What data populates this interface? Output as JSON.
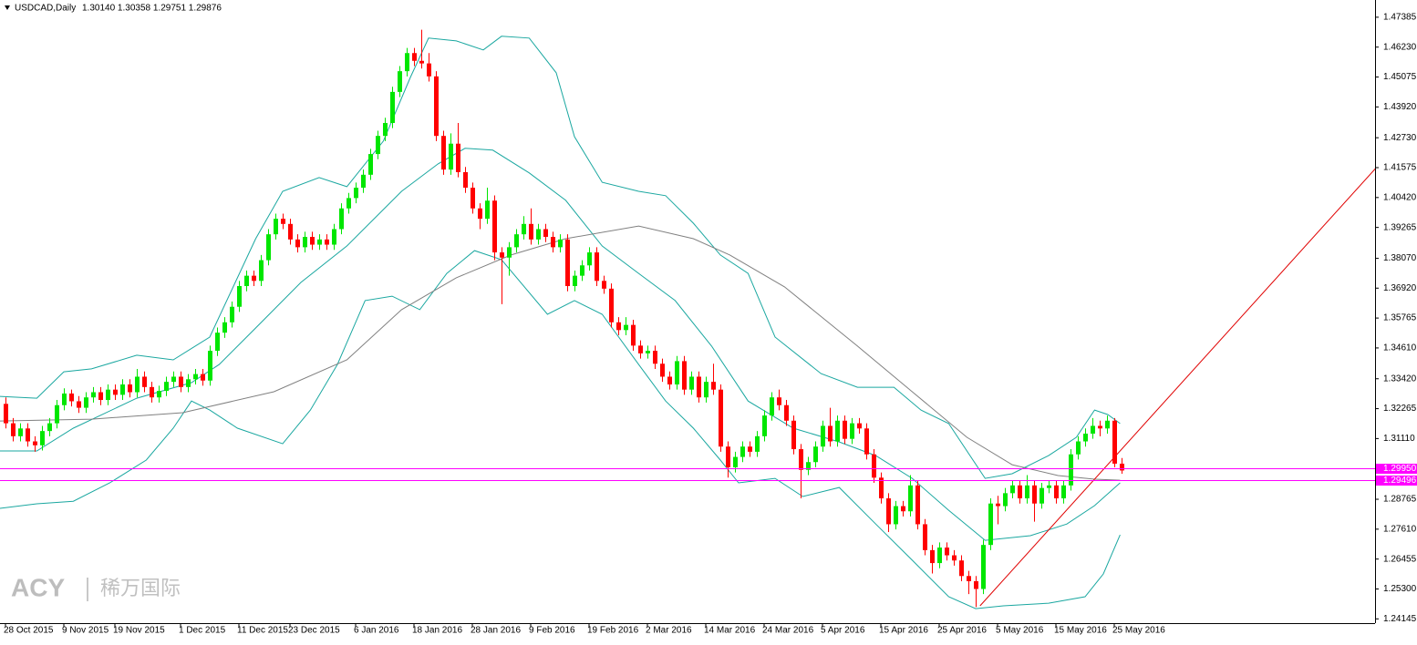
{
  "chart_data": {
    "type": "candlestick",
    "title": "USDCAD,Daily",
    "ohlc_text": "1.30140 1.30358 1.29751 1.29876",
    "watermark": {
      "brand": "ACY",
      "name": "稀万国际"
    },
    "up_color": "#00e600",
    "down_color": "#ff0000",
    "xlim": [
      -0.75,
      187.75
    ],
    "ylim": [
      1.2398,
      1.4805
    ],
    "yticks": [
      1.47385,
      {
        "value": 1.4623,
        "label": "1.46230"
      },
      1.45075,
      {
        "value": 1.4392,
        "label": "1.43920"
      },
      {
        "value": 1.4273,
        "label": "1.42730"
      },
      1.41575,
      {
        "value": 1.4042,
        "label": "1.40420"
      },
      1.39265,
      {
        "value": 1.3807,
        "label": "1.38070"
      },
      {
        "value": 1.3692,
        "label": "1.36920"
      },
      1.35765,
      {
        "value": 1.3461,
        "label": "1.34610"
      },
      {
        "value": 1.3342,
        "label": "1.33420"
      },
      1.32265,
      {
        "value": 1.3111,
        "label": "1.31110"
      },
      1.28765,
      {
        "value": 1.2761,
        "label": "1.27610"
      },
      1.26455,
      {
        "value": 1.253,
        "label": "1.25300"
      },
      1.24145
    ],
    "xticks": [
      {
        "value": 0,
        "label": "28 Oct 2015"
      },
      {
        "value": 8,
        "label": "9 Nov 2015"
      },
      {
        "value": 15,
        "label": "19 Nov 2015"
      },
      {
        "value": 24,
        "label": "1 Dec 2015"
      },
      {
        "value": 32,
        "label": "11 Dec 2015"
      },
      {
        "value": 39,
        "label": "23 Dec 2015"
      },
      {
        "value": 48,
        "label": "6 Jan 2016"
      },
      {
        "value": 56,
        "label": "18 Jan 2016"
      },
      {
        "value": 64,
        "label": "28 Jan 2016"
      },
      {
        "value": 72,
        "label": "9 Feb 2016"
      },
      {
        "value": 80,
        "label": "19 Feb 2016"
      },
      {
        "value": 88,
        "label": "2 Mar 2016"
      },
      {
        "value": 96,
        "label": "14 Mar 2016"
      },
      {
        "value": 104,
        "label": "24 Mar 2016"
      },
      {
        "value": 112,
        "label": "5 Apr 2016"
      },
      {
        "value": 120,
        "label": "15 Apr 2016"
      },
      {
        "value": 128,
        "label": "25 Apr 2016"
      },
      {
        "value": 136,
        "label": "5 May 2016"
      },
      {
        "value": 144,
        "label": "15 May 2016"
      },
      {
        "value": 152,
        "label": "25 May 2016"
      }
    ],
    "ohlc": [
      [
        1.3245,
        1.327,
        1.315,
        1.317
      ],
      [
        1.317,
        1.319,
        1.31,
        1.312
      ],
      [
        1.312,
        1.317,
        1.31,
        1.315
      ],
      [
        1.315,
        1.317,
        1.308,
        1.31
      ],
      [
        1.31,
        1.312,
        1.306,
        1.3085
      ],
      [
        1.3085,
        1.316,
        1.3065,
        1.314
      ],
      [
        1.314,
        1.319,
        1.312,
        1.317
      ],
      [
        1.317,
        1.326,
        1.315,
        1.324
      ],
      [
        1.324,
        1.3305,
        1.322,
        1.3285
      ],
      [
        1.3285,
        1.33,
        1.3235,
        1.3255
      ],
      [
        1.3255,
        1.3275,
        1.321,
        1.323
      ],
      [
        1.323,
        1.329,
        1.321,
        1.327
      ],
      [
        1.327,
        1.331,
        1.325,
        1.329
      ],
      [
        1.329,
        1.331,
        1.324,
        1.326
      ],
      [
        1.326,
        1.332,
        1.324,
        1.33
      ],
      [
        1.33,
        1.332,
        1.326,
        1.328
      ],
      [
        1.328,
        1.334,
        1.326,
        1.332
      ],
      [
        1.332,
        1.334,
        1.327,
        1.329
      ],
      [
        1.329,
        1.338,
        1.327,
        1.335
      ],
      [
        1.335,
        1.337,
        1.329,
        1.331
      ],
      [
        1.331,
        1.333,
        1.325,
        1.327
      ],
      [
        1.327,
        1.3315,
        1.325,
        1.3295
      ],
      [
        1.3295,
        1.335,
        1.3275,
        1.333
      ],
      [
        1.333,
        1.337,
        1.331,
        1.335
      ],
      [
        1.335,
        1.337,
        1.329,
        1.331
      ],
      [
        1.331,
        1.336,
        1.329,
        1.334
      ],
      [
        1.334,
        1.338,
        1.332,
        1.336
      ],
      [
        1.336,
        1.338,
        1.3315,
        1.3335
      ],
      [
        1.3335,
        1.347,
        1.3315,
        1.345
      ],
      [
        1.345,
        1.354,
        1.343,
        1.352
      ],
      [
        1.352,
        1.358,
        1.35,
        1.356
      ],
      [
        1.356,
        1.364,
        1.354,
        1.362
      ],
      [
        1.362,
        1.372,
        1.36,
        1.37
      ],
      [
        1.37,
        1.376,
        1.368,
        1.374
      ],
      [
        1.374,
        1.376,
        1.37,
        1.372
      ],
      [
        1.372,
        1.382,
        1.37,
        1.38
      ],
      [
        1.38,
        1.392,
        1.378,
        1.39
      ],
      [
        1.39,
        1.398,
        1.388,
        1.396
      ],
      [
        1.396,
        1.398,
        1.392,
        1.394
      ],
      [
        1.394,
        1.396,
        1.386,
        1.388
      ],
      [
        1.388,
        1.39,
        1.383,
        1.385
      ],
      [
        1.385,
        1.391,
        1.383,
        1.389
      ],
      [
        1.389,
        1.391,
        1.384,
        1.386
      ],
      [
        1.386,
        1.39,
        1.384,
        1.388
      ],
      [
        1.388,
        1.39,
        1.384,
        1.386
      ],
      [
        1.386,
        1.394,
        1.384,
        1.392
      ],
      [
        1.392,
        1.402,
        1.39,
        1.4
      ],
      [
        1.4,
        1.406,
        1.398,
        1.404
      ],
      [
        1.404,
        1.41,
        1.402,
        1.408
      ],
      [
        1.408,
        1.415,
        1.406,
        1.413
      ],
      [
        1.413,
        1.423,
        1.411,
        1.421
      ],
      [
        1.421,
        1.43,
        1.419,
        1.428
      ],
      [
        1.428,
        1.435,
        1.426,
        1.433
      ],
      [
        1.433,
        1.447,
        1.431,
        1.445
      ],
      [
        1.445,
        1.455,
        1.443,
        1.453
      ],
      [
        1.453,
        1.462,
        1.451,
        1.46
      ],
      [
        1.46,
        1.462,
        1.455,
        1.457
      ],
      [
        1.457,
        1.469,
        1.454,
        1.456
      ],
      [
        1.456,
        1.46,
        1.449,
        1.451
      ],
      [
        1.451,
        1.453,
        1.426,
        1.428
      ],
      [
        1.428,
        1.43,
        1.413,
        1.415
      ],
      [
        1.415,
        1.429,
        1.413,
        1.425
      ],
      [
        1.425,
        1.433,
        1.412,
        1.414
      ],
      [
        1.414,
        1.416,
        1.406,
        1.408
      ],
      [
        1.408,
        1.41,
        1.398,
        1.4
      ],
      [
        1.4,
        1.402,
        1.392,
        1.396
      ],
      [
        1.396,
        1.408,
        1.394,
        1.403
      ],
      [
        1.403,
        1.405,
        1.38,
        1.383
      ],
      [
        1.383,
        1.385,
        1.363,
        1.381
      ],
      [
        1.381,
        1.387,
        1.374,
        1.385
      ],
      [
        1.385,
        1.392,
        1.383,
        1.39
      ],
      [
        1.39,
        1.397,
        1.388,
        1.394
      ],
      [
        1.394,
        1.4,
        1.386,
        1.388
      ],
      [
        1.388,
        1.394,
        1.386,
        1.392
      ],
      [
        1.392,
        1.394,
        1.387,
        1.389
      ],
      [
        1.389,
        1.391,
        1.383,
        1.385
      ],
      [
        1.385,
        1.39,
        1.383,
        1.388
      ],
      [
        1.388,
        1.39,
        1.368,
        1.37
      ],
      [
        1.37,
        1.376,
        1.368,
        1.374
      ],
      [
        1.374,
        1.38,
        1.372,
        1.378
      ],
      [
        1.378,
        1.385,
        1.376,
        1.383
      ],
      [
        1.383,
        1.385,
        1.37,
        1.372
      ],
      [
        1.372,
        1.374,
        1.367,
        1.369
      ],
      [
        1.369,
        1.371,
        1.354,
        1.356
      ],
      [
        1.356,
        1.358,
        1.351,
        1.353
      ],
      [
        1.353,
        1.358,
        1.351,
        1.355
      ],
      [
        1.355,
        1.357,
        1.345,
        1.347
      ],
      [
        1.347,
        1.349,
        1.342,
        1.344
      ],
      [
        1.344,
        1.347,
        1.342,
        1.345
      ],
      [
        1.345,
        1.347,
        1.338,
        1.34
      ],
      [
        1.34,
        1.342,
        1.333,
        1.335
      ],
      [
        1.335,
        1.337,
        1.33,
        1.332
      ],
      [
        1.332,
        1.343,
        1.33,
        1.341
      ],
      [
        1.341,
        1.343,
        1.328,
        1.33
      ],
      [
        1.33,
        1.337,
        1.328,
        1.335
      ],
      [
        1.335,
        1.337,
        1.325,
        1.327
      ],
      [
        1.327,
        1.335,
        1.325,
        1.333
      ],
      [
        1.333,
        1.34,
        1.328,
        1.33
      ],
      [
        1.33,
        1.332,
        1.306,
        1.308
      ],
      [
        1.308,
        1.31,
        1.296,
        1.3
      ],
      [
        1.3,
        1.306,
        1.298,
        1.304
      ],
      [
        1.304,
        1.31,
        1.302,
        1.308
      ],
      [
        1.308,
        1.31,
        1.304,
        1.306
      ],
      [
        1.306,
        1.314,
        1.304,
        1.312
      ],
      [
        1.312,
        1.322,
        1.31,
        1.32
      ],
      [
        1.32,
        1.329,
        1.318,
        1.327
      ],
      [
        1.327,
        1.33,
        1.322,
        1.324
      ],
      [
        1.324,
        1.326,
        1.316,
        1.318
      ],
      [
        1.318,
        1.32,
        1.305,
        1.307
      ],
      [
        1.307,
        1.309,
        1.288,
        1.299
      ],
      [
        1.299,
        1.304,
        1.297,
        1.302
      ],
      [
        1.302,
        1.31,
        1.3,
        1.308
      ],
      [
        1.308,
        1.318,
        1.306,
        1.316
      ],
      [
        1.316,
        1.323,
        1.308,
        1.31
      ],
      [
        1.31,
        1.32,
        1.308,
        1.318
      ],
      [
        1.318,
        1.32,
        1.309,
        1.311
      ],
      [
        1.311,
        1.319,
        1.309,
        1.317
      ],
      [
        1.317,
        1.319,
        1.313,
        1.315
      ],
      [
        1.315,
        1.317,
        1.303,
        1.305
      ],
      [
        1.305,
        1.307,
        1.294,
        1.296
      ],
      [
        1.296,
        1.298,
        1.286,
        1.288
      ],
      [
        1.288,
        1.29,
        1.275,
        1.278
      ],
      [
        1.278,
        1.287,
        1.276,
        1.285
      ],
      [
        1.285,
        1.287,
        1.281,
        1.283
      ],
      [
        1.283,
        1.297,
        1.281,
        1.293
      ],
      [
        1.293,
        1.295,
        1.276,
        1.278
      ],
      [
        1.278,
        1.28,
        1.266,
        1.268
      ],
      [
        1.268,
        1.27,
        1.259,
        1.263
      ],
      [
        1.263,
        1.271,
        1.261,
        1.269
      ],
      [
        1.269,
        1.271,
        1.264,
        1.266
      ],
      [
        1.266,
        1.268,
        1.262,
        1.264
      ],
      [
        1.264,
        1.266,
        1.256,
        1.258
      ],
      [
        1.258,
        1.26,
        1.251,
        1.256
      ],
      [
        1.256,
        1.258,
        1.246,
        1.253
      ],
      [
        1.253,
        1.272,
        1.251,
        1.27
      ],
      [
        1.27,
        1.288,
        1.268,
        1.286
      ],
      [
        1.286,
        1.289,
        1.278,
        1.285
      ],
      [
        1.285,
        1.292,
        1.283,
        1.29
      ],
      [
        1.29,
        1.295,
        1.288,
        1.293
      ],
      [
        1.293,
        1.295,
        1.286,
        1.288
      ],
      [
        1.288,
        1.297,
        1.286,
        1.293
      ],
      [
        1.293,
        1.295,
        1.279,
        1.286
      ],
      [
        1.286,
        1.294,
        1.284,
        1.292
      ],
      [
        1.292,
        1.295,
        1.29,
        1.293
      ],
      [
        1.293,
        1.295,
        1.286,
        1.288
      ],
      [
        1.288,
        1.295,
        1.286,
        1.293
      ],
      [
        1.293,
        1.307,
        1.291,
        1.305
      ],
      [
        1.305,
        1.312,
        1.303,
        1.31
      ],
      [
        1.31,
        1.315,
        1.308,
        1.313
      ],
      [
        1.313,
        1.319,
        1.311,
        1.316
      ],
      [
        1.316,
        1.318,
        1.312,
        1.315
      ],
      [
        1.315,
        1.32,
        1.313,
        1.318
      ],
      [
        1.318,
        1.319,
        1.3,
        1.3014
      ],
      [
        1.3014,
        1.30358,
        1.29751,
        1.29876
      ]
    ],
    "overlays": [
      {
        "color": "#1aa7a0",
        "x": [
          -0.8,
          4.3,
          8,
          11.8,
          18,
          23,
          28,
          34.3,
          38,
          43,
          46.8,
          51.8,
          55.5,
          58,
          61.8,
          65.5,
          68,
          71.8,
          75.5,
          78,
          81.8,
          86.8,
          90.5,
          94.3,
          98,
          101.8,
          105.5,
          111.8,
          116.8,
          121.8,
          125.5,
          129.3,
          134.3,
          138,
          143,
          146.8,
          149.3,
          151.1,
          152.8
        ],
        "values": [
          1.3274,
          1.3267,
          1.3369,
          1.338,
          1.3433,
          1.3415,
          1.3503,
          1.3883,
          1.4066,
          1.4119,
          1.4084,
          1.426,
          1.4506,
          1.4658,
          1.4647,
          1.4612,
          1.4665,
          1.4658,
          1.4524,
          1.4277,
          1.4101,
          1.4066,
          1.4049,
          1.3943,
          1.382,
          1.3749,
          1.3503,
          1.3362,
          1.3309,
          1.3309,
          1.3221,
          1.3169,
          1.2957,
          1.2975,
          1.3045,
          1.3116,
          1.3221,
          1.3204,
          1.3169
        ]
      },
      {
        "color": "#1aa7a0",
        "x": [
          -0.8,
          4.3,
          9.3,
          18,
          25.5,
          29.3,
          34.3,
          40.5,
          46.8,
          54.3,
          59.3,
          63,
          66.8,
          71.8,
          76.8,
          81.8,
          86.8,
          91.8,
          96.8,
          101.8,
          108,
          114.3,
          119.3,
          124.3,
          129.3,
          134.3,
          140.5,
          145.5,
          149.3,
          152.8
        ],
        "values": [
          1.3063,
          1.3063,
          1.3151,
          1.3267,
          1.3327,
          1.3397,
          1.3538,
          1.3714,
          1.3855,
          1.4066,
          1.4172,
          1.4232,
          1.4225,
          1.4137,
          1.4031,
          1.3855,
          1.3749,
          1.3644,
          1.3468,
          1.3256,
          1.3151,
          1.3098,
          1.3045,
          1.2957,
          1.2834,
          1.2718,
          1.2736,
          1.2781,
          1.2852,
          1.294
        ]
      },
      {
        "color": "#1aa7a0",
        "x": [
          -0.8,
          4.3,
          9.3,
          14.3,
          19.3,
          23,
          25.5,
          28,
          31.8,
          38,
          41.8,
          45.5,
          49.3,
          53,
          56.8,
          60.5,
          64.3,
          68,
          74.3,
          78,
          81.8,
          86.8,
          90.5,
          94.3,
          98,
          100.5,
          105.5,
          109.3,
          114.3,
          119.3,
          124.3,
          129.3,
          133,
          136.8,
          143,
          148,
          150.5,
          152.8
        ],
        "values": [
          1.2841,
          1.2859,
          1.2869,
          1.294,
          1.3028,
          1.3151,
          1.3256,
          1.3221,
          1.3151,
          1.3091,
          1.3221,
          1.3397,
          1.3644,
          1.3661,
          1.3609,
          1.3749,
          1.3837,
          1.3802,
          1.3591,
          1.3644,
          1.3591,
          1.3397,
          1.3256,
          1.3151,
          1.3028,
          1.294,
          1.2957,
          1.2887,
          1.2922,
          1.2781,
          1.2641,
          1.25,
          1.2454,
          1.2465,
          1.2475,
          1.25,
          1.2588,
          1.2739
        ]
      },
      {
        "color": "#808080",
        "x": [
          -0.8,
          11.8,
          24.3,
          36.8,
          46.8,
          54.3,
          61.8,
          69.3,
          76.8,
          86.8,
          94.3,
          99.3,
          106.8,
          116.8,
          124.3,
          131.8,
          138,
          144.3,
          149.3,
          152.8
        ],
        "values": [
          1.3179,
          1.3186,
          1.3211,
          1.3292,
          1.3415,
          1.3609,
          1.3732,
          1.382,
          1.3883,
          1.3932,
          1.3883,
          1.382,
          1.3697,
          1.3468,
          1.3292,
          1.3116,
          1.301,
          1.2968,
          1.2954,
          1.295
        ]
      },
      {
        "color": "#e00000",
        "x": [
          133.6,
          187.8
        ],
        "values": [
          1.2465,
          1.4154
        ]
      }
    ],
    "levels": [
      {
        "value": 1.2995,
        "label": "1.29950"
      },
      1.29496
    ],
    "level_color": "#ff00ff"
  }
}
